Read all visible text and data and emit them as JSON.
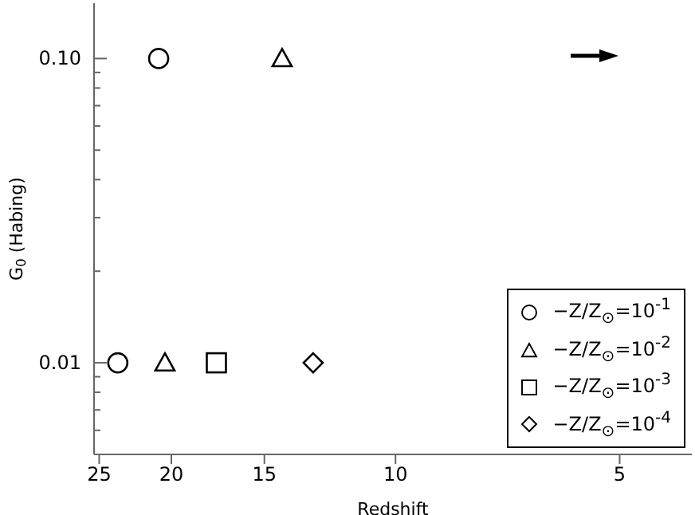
{
  "chart_data": {
    "type": "scatter",
    "xlabel": "Redshift",
    "ylabel": "G$_{0}$ (Habing)",
    "log": "xy",
    "xlim": [
      25.4,
      4
    ],
    "xticks": [
      25,
      20,
      15,
      10,
      5
    ],
    "ylim": [
      0.005,
      0.152
    ],
    "yticks": [
      {
        "value": 0.006,
        "label": null
      },
      {
        "value": 0.007,
        "label": null
      },
      {
        "value": 0.008,
        "label": null
      },
      {
        "value": 0.009,
        "label": null
      },
      {
        "value": 0.01,
        "label": "0.01"
      },
      {
        "value": 0.02,
        "label": null
      },
      {
        "value": 0.03,
        "label": null
      },
      {
        "value": 0.04,
        "label": null
      },
      {
        "value": 0.05,
        "label": null
      },
      {
        "value": 0.06,
        "label": null
      },
      {
        "value": 0.07,
        "label": null
      },
      {
        "value": 0.08,
        "label": null
      },
      {
        "value": 0.09,
        "label": null
      },
      {
        "value": 0.1,
        "label": "0.10"
      }
    ],
    "legend": "bottom right",
    "series": [
      {
        "name": "−Z/Z$_{⊙}$=10$^{-1}$",
        "color": "#000000",
        "marker": "circle",
        "x": [
          23.6,
          20.8
        ],
        "values": [
          0.01,
          0.1
        ]
      },
      {
        "name": "−Z/Z$_{⊙}$=10$^{-2}$",
        "color": "#000000",
        "marker": "triangle",
        "x": [
          20.4,
          14.2
        ],
        "values": [
          0.01,
          0.1
        ]
      },
      {
        "name": "−Z/Z$_{⊙}$=10$^{-3}$",
        "color": "#000000",
        "marker": "square",
        "x": [
          17.4
        ],
        "values": [
          0.01
        ]
      },
      {
        "name": "−Z/Z$_{⊙}$=10$^{-4}$",
        "color": "#000000",
        "marker": "diamond",
        "x": [
          12.9
        ],
        "values": [
          0.01
        ]
      }
    ]
  }
}
